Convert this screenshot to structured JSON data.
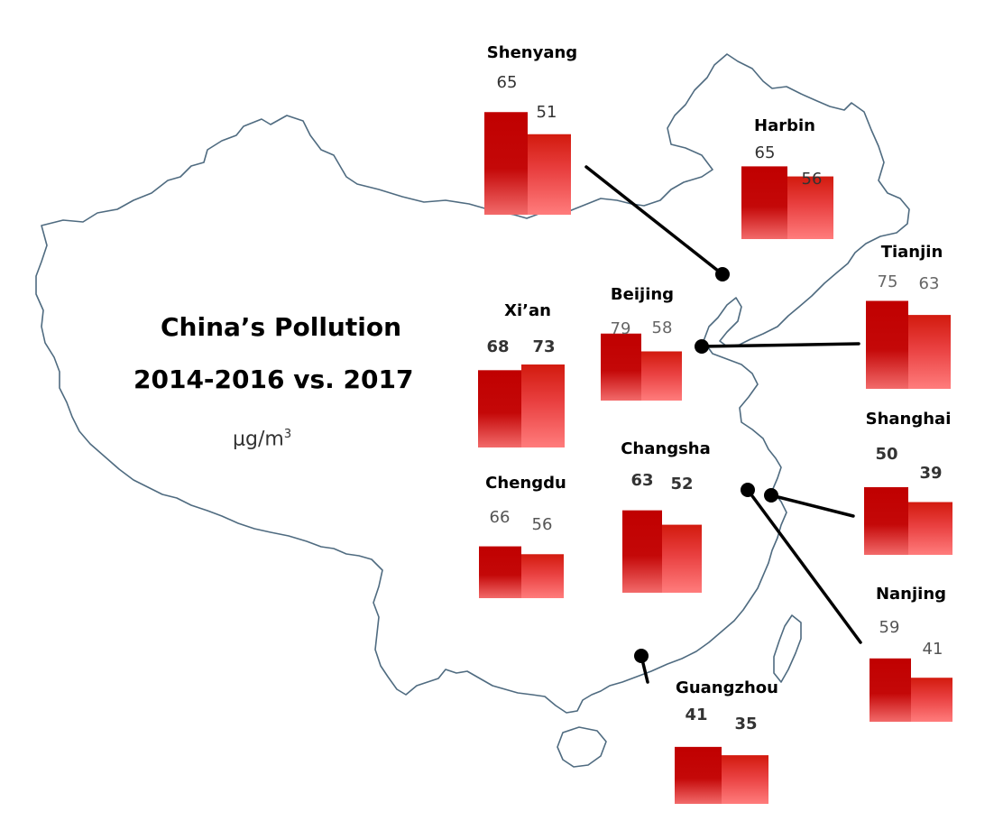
{
  "title_line1": "China’s Pollution",
  "title_line2": "2014-2016 vs. 2017",
  "unit": {
    "base": "μg/m",
    "exp": "3"
  },
  "colors": {
    "bar_dark_top": "#c20000",
    "bar_dark_bottom": "#f06060",
    "bar_light_top": "#d01a10",
    "bar_light_bottom": "#ff7878",
    "map_outline": "#4f6b80",
    "leader": "#000000"
  },
  "chart_data": {
    "type": "bar",
    "series": [
      {
        "name": "2014-2016"
      },
      {
        "name": "2017"
      }
    ],
    "cities": [
      {
        "name": "Shenyang",
        "values": [
          65,
          51
        ]
      },
      {
        "name": "Harbin",
        "values": [
          65,
          56
        ]
      },
      {
        "name": "Tianjin",
        "values": [
          75,
          63
        ]
      },
      {
        "name": "Beijing",
        "values": [
          79,
          58
        ]
      },
      {
        "name": "Xi’an",
        "values": [
          68,
          73
        ]
      },
      {
        "name": "Shanghai",
        "values": [
          50,
          39
        ]
      },
      {
        "name": "Changsha",
        "values": [
          63,
          52
        ]
      },
      {
        "name": "Chengdu",
        "values": [
          66,
          56
        ]
      },
      {
        "name": "Nanjing",
        "values": [
          59,
          41
        ]
      },
      {
        "name": "Guangzhou",
        "values": [
          41,
          35
        ]
      }
    ]
  }
}
